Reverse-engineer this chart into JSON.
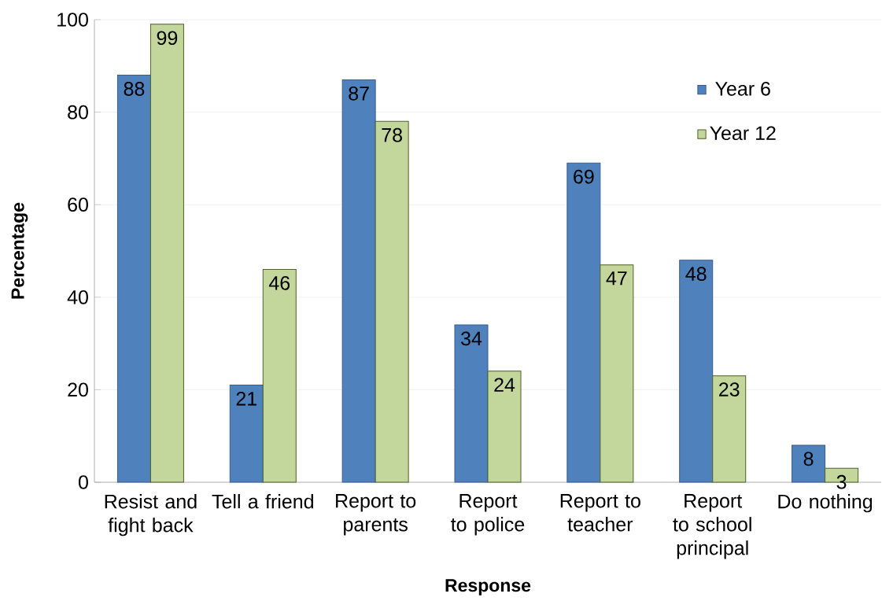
{
  "chart_data": {
    "type": "bar",
    "xlabel": "Response",
    "ylabel": "Percentage",
    "categories": [
      "Resist and fight back",
      "Tell a friend",
      "Report to parents",
      "Report to police",
      "Report to teacher",
      "Report to school principal",
      "Do nothing"
    ],
    "series": [
      {
        "name": "Year 6",
        "color": "#4f81bd",
        "values": [
          88,
          21,
          87,
          34,
          69,
          48,
          8
        ]
      },
      {
        "name": "Year 12",
        "color": "#c3d69b",
        "values": [
          99,
          46,
          78,
          24,
          47,
          23,
          3
        ]
      }
    ],
    "ylim": [
      0,
      100
    ],
    "yticks": [
      0,
      20,
      40,
      60,
      80,
      100
    ],
    "grid": "y",
    "legend": "top right",
    "data_labels": true
  }
}
